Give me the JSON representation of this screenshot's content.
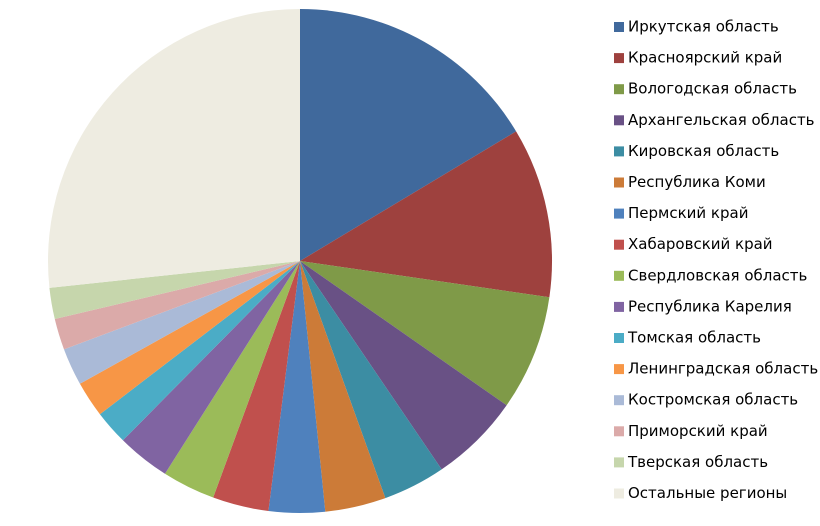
{
  "chart_data": {
    "type": "pie",
    "categories": [
      "Иркутская область",
      "Красноярский край",
      "Вологодская область",
      "Архангельская область",
      "Кировская область",
      "Республика Коми",
      "Пермский край",
      "Хабаровский край",
      "Свердловская область",
      "Республика Карелия",
      "Томская область",
      "Ленинградская область",
      "Костромская область",
      "Приморский край",
      "Тверская область",
      "Остальные регионы"
    ],
    "values": [
      16.4,
      10.9,
      7.4,
      5.8,
      4.0,
      3.9,
      3.6,
      3.6,
      3.4,
      3.4,
      2.2,
      2.3,
      2.4,
      2.0,
      2.0,
      26.7
    ],
    "colors": [
      "#40699c",
      "#9e413e",
      "#7f9a48",
      "#695185",
      "#3c8da3",
      "#cc7b38",
      "#4f81bd",
      "#c0504d",
      "#9bbb59",
      "#8064a2",
      "#4bacc6",
      "#f79646",
      "#aabad7",
      "#dbaaa9",
      "#c6d6ac",
      "#eeece1"
    ],
    "legend": "right"
  }
}
